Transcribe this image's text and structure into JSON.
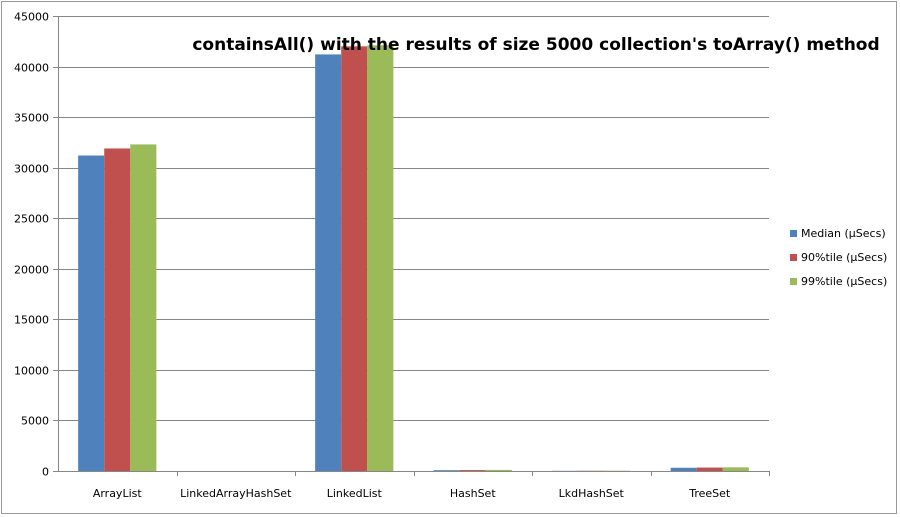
{
  "chart_data": {
    "type": "bar",
    "title": "containsAll() with the results of size 5000 collection's toArray() method",
    "xlabel": "",
    "ylabel": "",
    "ylim": [
      0,
      45000
    ],
    "yticks": [
      0,
      5000,
      10000,
      15000,
      20000,
      25000,
      30000,
      35000,
      40000,
      45000
    ],
    "grid": true,
    "legend_position": "right",
    "categories": [
      "ArrayList",
      "LinkedArrayHashSet",
      "LinkedList",
      "HashSet",
      "LkdHashSet",
      "TreeSet"
    ],
    "series": [
      {
        "name": "Median (µSecs)",
        "color": "#4f81bd",
        "values": [
          31200,
          0,
          41200,
          80,
          20,
          320
        ]
      },
      {
        "name": "90%tile (µSecs)",
        "color": "#c0504d",
        "values": [
          31900,
          0,
          42000,
          90,
          25,
          340
        ]
      },
      {
        "name": "99%tile (µSecs)",
        "color": "#9bbb59",
        "values": [
          32300,
          0,
          42100,
          110,
          30,
          360
        ]
      }
    ]
  }
}
